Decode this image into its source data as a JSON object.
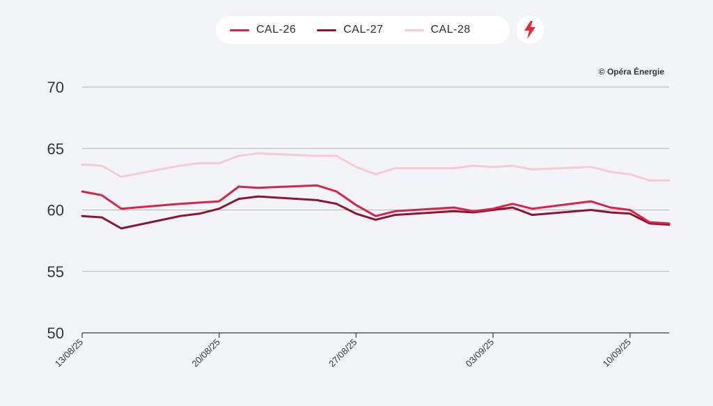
{
  "legend": {
    "items": [
      {
        "label": "CAL-26",
        "color": "#d7234a"
      },
      {
        "label": "CAL-27",
        "color": "#8b1530"
      },
      {
        "label": "CAL-28",
        "color": "#f6cbd4"
      }
    ],
    "bolt_icon": "lightning-bolt-icon",
    "bolt_color": "#e8263c"
  },
  "copyright": "© Opéra Énergie",
  "chart_data": {
    "type": "line",
    "title": "",
    "xlabel": "",
    "ylabel": "",
    "ylim": [
      50,
      70
    ],
    "yticks": [
      "50",
      "55",
      "60",
      "65",
      "70"
    ],
    "xticks": [
      "13/08/25",
      "20/08/25",
      "27/08/25",
      "03/09/25",
      "10/09/25"
    ],
    "xtick_days": [
      0,
      7,
      14,
      21,
      28
    ],
    "x_range": [
      0,
      30
    ],
    "x": [
      0,
      1,
      2,
      5,
      6,
      7,
      8,
      9,
      12,
      13,
      14,
      15,
      16,
      19,
      20,
      21,
      22,
      23,
      26,
      27,
      28,
      29,
      30
    ],
    "series": [
      {
        "name": "CAL-26",
        "color": "#d7234a",
        "values": [
          61.5,
          61.2,
          60.1,
          60.5,
          60.6,
          60.7,
          61.9,
          61.8,
          62.0,
          61.5,
          60.4,
          59.5,
          59.9,
          60.2,
          59.9,
          60.1,
          60.5,
          60.1,
          60.7,
          60.2,
          60.0,
          59.0,
          58.9
        ]
      },
      {
        "name": "CAL-27",
        "color": "#8b1530",
        "values": [
          59.5,
          59.4,
          58.5,
          59.5,
          59.7,
          60.1,
          60.9,
          61.1,
          60.8,
          60.5,
          59.7,
          59.2,
          59.6,
          59.9,
          59.8,
          60.0,
          60.2,
          59.6,
          60.0,
          59.8,
          59.7,
          58.9,
          58.8
        ]
      },
      {
        "name": "CAL-28",
        "color": "#f6cbd4",
        "values": [
          63.7,
          63.6,
          62.7,
          63.6,
          63.8,
          63.8,
          64.4,
          64.6,
          64.4,
          64.4,
          63.5,
          62.9,
          63.4,
          63.4,
          63.6,
          63.5,
          63.6,
          63.3,
          63.5,
          63.1,
          62.9,
          62.4,
          62.4
        ]
      }
    ]
  }
}
